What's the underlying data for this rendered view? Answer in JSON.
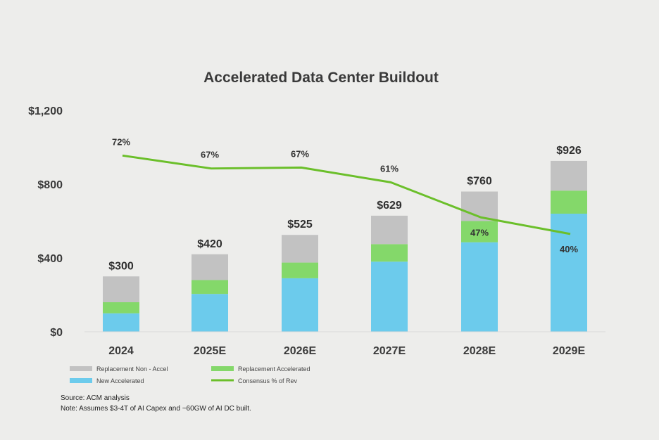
{
  "chart_data": {
    "type": "bar",
    "stacked": true,
    "title": "Accelerated Data Center Buildout",
    "categories": [
      "2024",
      "2025E",
      "2026E",
      "2027E",
      "2028E",
      "2029E"
    ],
    "series": [
      {
        "name": "New Accelerated",
        "color": "#6ccbec",
        "values": [
          100,
          205,
          290,
          380,
          485,
          640
        ]
      },
      {
        "name": "Replacement Accelerated",
        "color": "#84d86a",
        "values": [
          60,
          75,
          85,
          95,
          115,
          125
        ]
      },
      {
        "name": "Replacement Non - Accel",
        "color": "#c2c2c2",
        "values": [
          140,
          140,
          150,
          154,
          160,
          161
        ]
      }
    ],
    "totals": [
      "$300",
      "$420",
      "$525",
      "$629",
      "$760",
      "$926"
    ],
    "line": {
      "name": "Consensus % of Rev",
      "color": "#6bbf2a",
      "values": [
        72,
        67,
        67,
        61,
        47,
        40
      ],
      "labels": [
        "72%",
        "67%",
        "67%",
        "61%",
        "47%",
        "40%"
      ],
      "chart_values": [
        955,
        885,
        890,
        810,
        620,
        530
      ]
    },
    "yticks": [
      0,
      400,
      800,
      1200
    ],
    "ytick_labels": [
      "$0",
      "$400",
      "$800",
      "$1,200"
    ],
    "ylim": [
      0,
      1200
    ],
    "xlabel": "",
    "ylabel": "",
    "legend_position": "bottom-left",
    "grid": false
  },
  "footer": {
    "source": "Source: ACM analysis",
    "note": "Note: Assumes $3-4T of AI Capex and ~60GW of AI DC built."
  }
}
